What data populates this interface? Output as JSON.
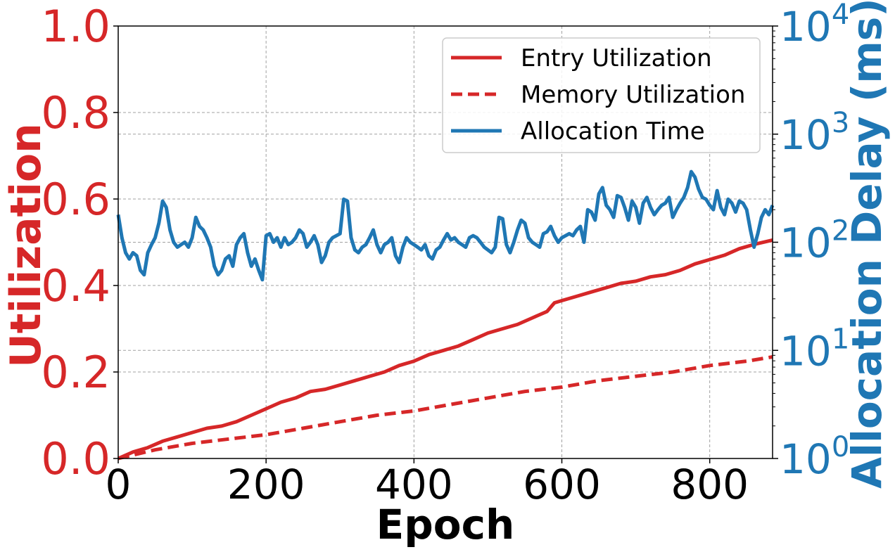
{
  "chart_data": {
    "type": "line",
    "title": "",
    "xlabel": "Epoch",
    "ylabel_left": "Utilization",
    "ylabel_right": "Allocation Delay (ms)",
    "xlim": [
      0,
      885
    ],
    "ylim_left": [
      0,
      1
    ],
    "ylim_right": [
      1,
      10000
    ],
    "right_scale": "log",
    "x_ticks": [
      "0",
      "200",
      "400",
      "600",
      "800"
    ],
    "x_tick_values": [
      0,
      200,
      400,
      600,
      800
    ],
    "left_ticks": [
      "0.0",
      "0.2",
      "0.4",
      "0.6",
      "0.8",
      "1.0"
    ],
    "left_tick_values": [
      0,
      0.2,
      0.4,
      0.6,
      0.8,
      1.0
    ],
    "right_ticks": [
      {
        "base": "10",
        "exp": "0",
        "value": 1
      },
      {
        "base": "10",
        "exp": "1",
        "value": 10
      },
      {
        "base": "10",
        "exp": "2",
        "value": 100
      },
      {
        "base": "10",
        "exp": "3",
        "value": 1000
      },
      {
        "base": "10",
        "exp": "4",
        "value": 10000
      }
    ],
    "grid": true,
    "legend_position": "top-right",
    "colors": {
      "red": "#d62728",
      "blue": "#1f77b4"
    },
    "series": [
      {
        "name": "Entry Utilization",
        "axis": "left",
        "style": "solid",
        "color": "#d62728",
        "x": [
          0,
          20,
          40,
          60,
          80,
          100,
          120,
          140,
          160,
          180,
          200,
          220,
          240,
          260,
          280,
          300,
          320,
          340,
          360,
          380,
          400,
          420,
          440,
          460,
          480,
          500,
          520,
          540,
          560,
          580,
          590,
          600,
          620,
          640,
          660,
          680,
          700,
          720,
          740,
          760,
          780,
          800,
          820,
          840,
          860,
          885
        ],
        "y": [
          0.0,
          0.015,
          0.025,
          0.04,
          0.05,
          0.06,
          0.07,
          0.075,
          0.085,
          0.1,
          0.115,
          0.13,
          0.14,
          0.155,
          0.16,
          0.17,
          0.18,
          0.19,
          0.2,
          0.215,
          0.225,
          0.24,
          0.25,
          0.26,
          0.275,
          0.29,
          0.3,
          0.31,
          0.325,
          0.34,
          0.36,
          0.365,
          0.375,
          0.385,
          0.395,
          0.405,
          0.41,
          0.42,
          0.425,
          0.435,
          0.45,
          0.46,
          0.47,
          0.485,
          0.495,
          0.505
        ]
      },
      {
        "name": "Memory Utilization",
        "axis": "left",
        "style": "dashed",
        "color": "#d62728",
        "x": [
          0,
          50,
          100,
          150,
          200,
          250,
          300,
          350,
          400,
          450,
          500,
          550,
          600,
          650,
          700,
          750,
          800,
          850,
          885
        ],
        "y": [
          0.0,
          0.02,
          0.035,
          0.045,
          0.055,
          0.07,
          0.085,
          0.1,
          0.11,
          0.125,
          0.14,
          0.155,
          0.165,
          0.18,
          0.19,
          0.2,
          0.215,
          0.225,
          0.235
        ]
      },
      {
        "name": "Allocation Time",
        "axis": "right",
        "style": "solid",
        "color": "#1f77b4",
        "x": [
          0,
          5,
          10,
          15,
          20,
          25,
          30,
          35,
          40,
          45,
          50,
          55,
          60,
          65,
          70,
          75,
          80,
          85,
          90,
          95,
          100,
          105,
          110,
          115,
          120,
          125,
          130,
          135,
          140,
          145,
          150,
          155,
          160,
          165,
          170,
          175,
          180,
          185,
          190,
          195,
          200,
          205,
          210,
          215,
          220,
          225,
          230,
          235,
          240,
          245,
          250,
          255,
          260,
          265,
          270,
          275,
          280,
          285,
          290,
          295,
          300,
          305,
          310,
          315,
          320,
          325,
          330,
          335,
          340,
          345,
          350,
          355,
          360,
          365,
          370,
          375,
          380,
          385,
          390,
          395,
          400,
          405,
          410,
          415,
          420,
          425,
          430,
          435,
          440,
          445,
          450,
          455,
          460,
          465,
          470,
          475,
          480,
          485,
          490,
          495,
          500,
          505,
          510,
          515,
          520,
          525,
          530,
          535,
          540,
          545,
          550,
          555,
          560,
          565,
          570,
          575,
          580,
          585,
          590,
          595,
          600,
          605,
          610,
          615,
          620,
          625,
          630,
          635,
          640,
          645,
          650,
          655,
          660,
          665,
          670,
          675,
          680,
          685,
          690,
          695,
          700,
          705,
          710,
          715,
          720,
          725,
          730,
          735,
          740,
          745,
          750,
          755,
          760,
          765,
          770,
          775,
          780,
          785,
          790,
          795,
          800,
          805,
          810,
          815,
          820,
          825,
          830,
          835,
          840,
          845,
          850,
          855,
          860,
          865,
          870,
          875,
          880,
          885
        ],
        "y": [
          180,
          110,
          80,
          70,
          80,
          75,
          55,
          50,
          80,
          95,
          110,
          150,
          240,
          210,
          130,
          100,
          90,
          95,
          100,
          90,
          110,
          170,
          140,
          130,
          110,
          90,
          60,
          50,
          55,
          70,
          75,
          60,
          95,
          110,
          120,
          80,
          60,
          70,
          55,
          45,
          115,
          120,
          100,
          110,
          90,
          110,
          95,
          100,
          110,
          130,
          120,
          90,
          100,
          115,
          95,
          65,
          75,
          100,
          110,
          115,
          120,
          250,
          240,
          110,
          85,
          80,
          90,
          95,
          110,
          130,
          95,
          80,
          95,
          100,
          110,
          75,
          65,
          90,
          110,
          100,
          95,
          90,
          85,
          95,
          75,
          70,
          85,
          90,
          105,
          120,
          105,
          110,
          100,
          95,
          90,
          110,
          115,
          110,
          100,
          90,
          85,
          80,
          90,
          170,
          165,
          95,
          80,
          100,
          130,
          160,
          150,
          110,
          100,
          95,
          90,
          120,
          125,
          140,
          115,
          100,
          110,
          115,
          120,
          115,
          130,
          140,
          100,
          200,
          190,
          160,
          280,
          320,
          220,
          200,
          170,
          270,
          260,
          210,
          160,
          240,
          210,
          150,
          230,
          260,
          210,
          180,
          200,
          220,
          230,
          260,
          170,
          200,
          230,
          260,
          320,
          450,
          400,
          310,
          260,
          250,
          220,
          200,
          300,
          210,
          180,
          250,
          230,
          190,
          240,
          230,
          200,
          130,
          90,
          120,
          170,
          200,
          180,
          220
        ]
      }
    ]
  }
}
